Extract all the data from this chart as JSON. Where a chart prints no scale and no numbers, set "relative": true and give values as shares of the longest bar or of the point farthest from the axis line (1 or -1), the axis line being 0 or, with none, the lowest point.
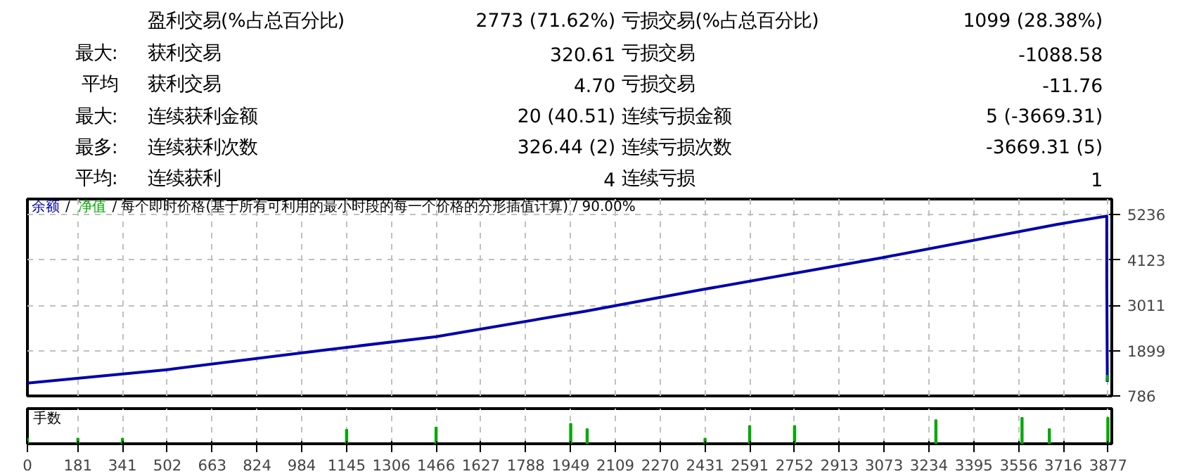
{
  "chart_data": [
    {
      "type": "other",
      "annotations": [
        "盈利交易(%占总百分比)",
        "2773 (71.62%)",
        "亏损交易(%占总百分比)",
        "1099 (28.38%)",
        "最大:",
        "获利交易",
        "320.61",
        "亏损交易",
        "-1088.58",
        "平均",
        "获利交易",
        "4.70",
        "亏损交易",
        "-11.76",
        "最大:",
        "连续获利金额",
        "20 (40.51)",
        "连续亏损金额",
        "5 (-3669.31)",
        "最多:",
        "连续获利次数",
        "326.44 (2)",
        "连续亏损次数",
        "-3669.31 (5)",
        "平均:",
        "连续获利",
        "4",
        "连续亏损",
        "1"
      ]
    },
    {
      "type": "line",
      "subtitle": "/ 每个即时价格(基于所有可利用的最小时段的每一个价格的分形插值计算) / 90.00%",
      "annotations": [
        "/"
      ],
      "xlim": [
        0,
        3890
      ],
      "ylim": [
        786,
        5620
      ],
      "yticks": [
        786,
        1899,
        3011,
        4123,
        5236
      ],
      "xticks": [
        0,
        181,
        341,
        502,
        663,
        824,
        984,
        1145,
        1306,
        1466,
        1627,
        1788,
        1949,
        2109,
        2270,
        2431,
        2591,
        2752,
        2913,
        3073,
        3234,
        3395,
        3556,
        3716,
        3877
      ],
      "tick_labels": "y",
      "grid": true,
      "legend": "top left",
      "series": [
        {
          "name": "余额",
          "color": "#0000aa",
          "x": [
            0,
            500,
            1061,
            1466,
            2006,
            2424,
            3066,
            3695,
            3872,
            3872,
            3874
          ],
          "values": [
            1100,
            1430,
            1910,
            2240,
            2870,
            3400,
            4180,
            5000,
            5200,
            3690,
            1130
          ]
        },
        {
          "name": "净值",
          "color": "#00aa00",
          "x": [
            3873,
            3875
          ],
          "values": [
            1150,
            1300
          ]
        }
      ]
    },
    {
      "type": "bar",
      "title": "手数",
      "relative": true,
      "color": "#00aa00",
      "xlim": [
        0,
        3890
      ],
      "xticks": [
        0,
        181,
        341,
        502,
        663,
        824,
        984,
        1145,
        1306,
        1466,
        1627,
        1788,
        1949,
        2109,
        2270,
        2431,
        2591,
        2752,
        2913,
        3073,
        3234,
        3395,
        3556,
        3716,
        3877
      ],
      "tick_labels": "x",
      "grid": "x",
      "x": [
        0,
        181,
        341,
        1145,
        1466,
        1949,
        2008,
        2431,
        2591,
        2752,
        3259,
        3568,
        3666,
        3876
      ],
      "values": [
        0.2,
        0.2,
        0.2,
        0.54,
        0.63,
        0.77,
        0.57,
        0.2,
        0.69,
        0.69,
        0.91,
        1.0,
        0.57,
        1.0
      ]
    }
  ]
}
